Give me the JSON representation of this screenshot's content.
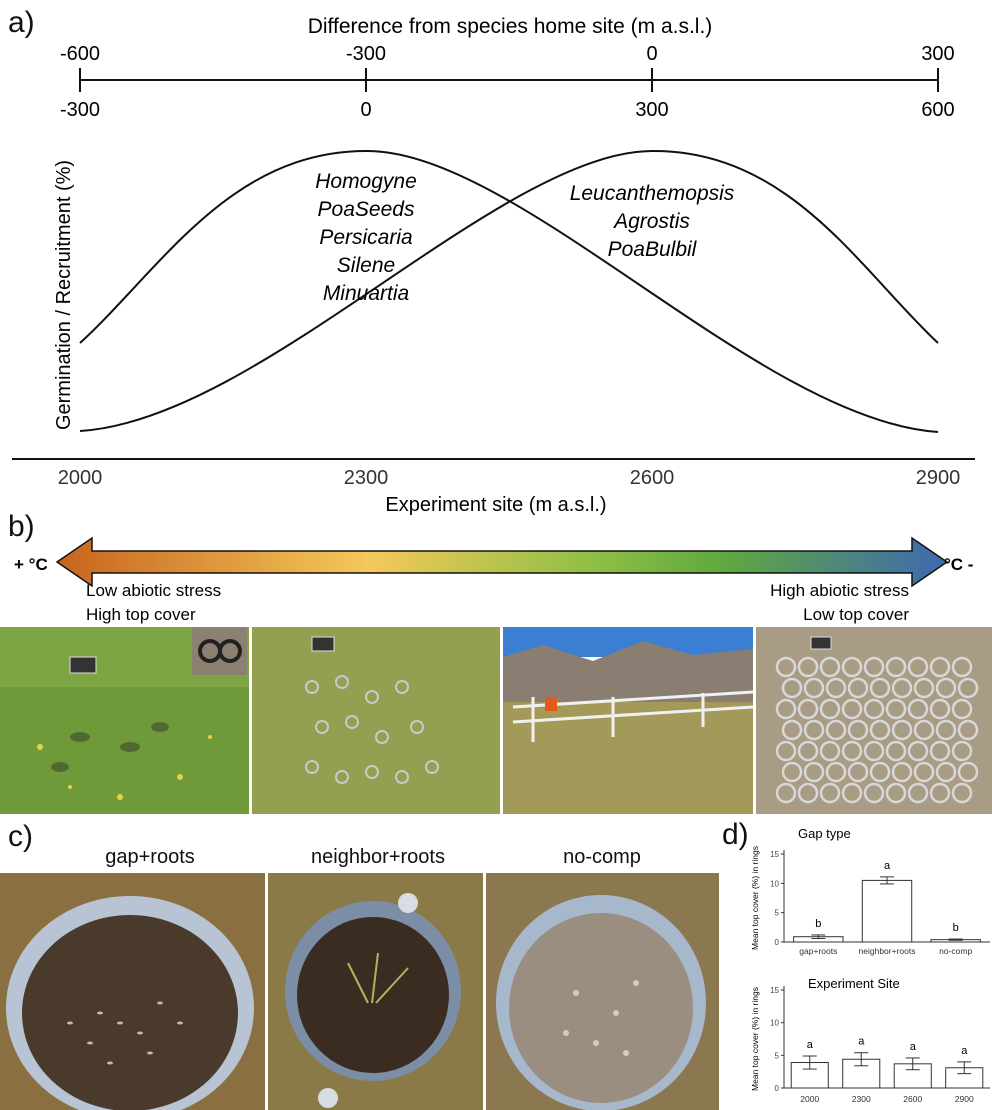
{
  "panels": {
    "a": "a)",
    "b": "b)",
    "c": "c)",
    "d": "d)"
  },
  "panel_a": {
    "top_axis_title": "Difference from species home site (m a.s.l.)",
    "top_axis_upper_ticks": [
      "-600",
      "-300",
      "0",
      "300"
    ],
    "top_axis_lower_ticks": [
      "-300",
      "0",
      "300",
      "600"
    ],
    "ylabel": "Germination / Recruitment (%)",
    "xlabel": "Experiment site (m a.s.l.)",
    "x_ticks": [
      "2000",
      "2300",
      "2600",
      "2900"
    ],
    "group1_species": [
      "Homogyne",
      "PoaSeeds",
      "Persicaria",
      "Silene",
      "Minuartia"
    ],
    "group2_species": [
      "Leucanthemopsis",
      "Agrostis",
      "PoaBulbil"
    ]
  },
  "panel_b": {
    "left_temp": "+ °C",
    "right_temp": "°C -",
    "left_line1": "Low abiotic stress",
    "left_line2": "High top cover",
    "right_line1": "High abiotic stress",
    "right_line2": "Low top cover",
    "gradient_colors": [
      "#c8641e",
      "#f4c85a",
      "#8fbf45",
      "#5fa840",
      "#3f68b0"
    ]
  },
  "panel_c": {
    "labels": [
      "gap+roots",
      "neighbor+roots",
      "no-comp"
    ]
  },
  "chart_data": [
    {
      "type": "bar",
      "title": "Gap type",
      "ylabel": "Mean top cover (%) in rings",
      "categories": [
        "gap+roots",
        "neighbor+roots",
        "no-comp"
      ],
      "values": [
        0.9,
        10.5,
        0.4
      ],
      "errors": [
        0.3,
        0.6,
        0.1
      ],
      "letters": [
        "b",
        "a",
        "b"
      ],
      "yticks": [
        0,
        5,
        10,
        15
      ],
      "ylim": [
        0,
        15
      ]
    },
    {
      "type": "bar",
      "title": "Experiment Site",
      "ylabel": "Mean top cover (%) in rings",
      "categories": [
        "2000",
        "2300",
        "2600",
        "2900"
      ],
      "values": [
        3.9,
        4.4,
        3.7,
        3.1
      ],
      "errors": [
        1.0,
        1.0,
        0.9,
        0.9
      ],
      "letters": [
        "a",
        "a",
        "a",
        "a"
      ],
      "yticks": [
        0,
        5,
        10,
        15
      ],
      "ylim": [
        0,
        15
      ]
    }
  ]
}
